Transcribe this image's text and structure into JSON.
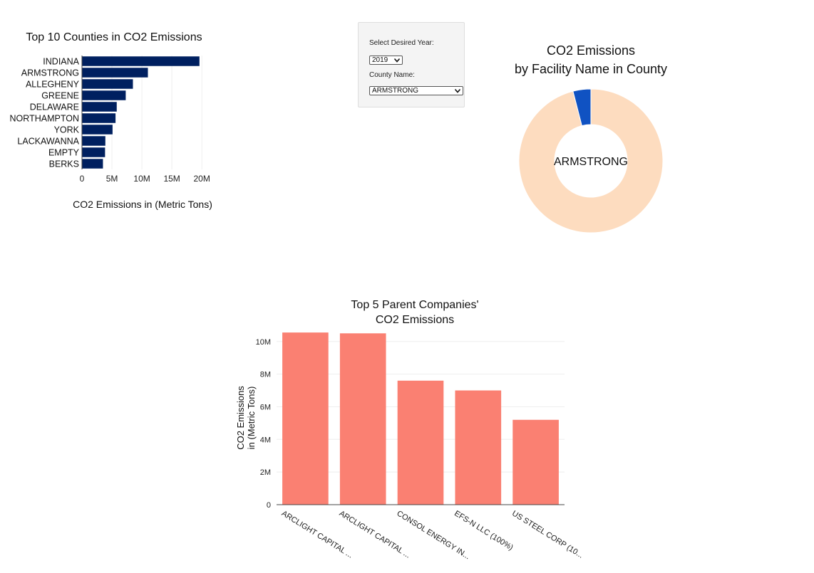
{
  "controls": {
    "year_label": "Select Desired Year:",
    "year_value": "2019",
    "county_label": "County Name:",
    "county_value": "ARMSTRONG"
  },
  "chart_data": [
    {
      "type": "bar",
      "orientation": "horizontal",
      "title": "Top 10 Counties in CO2 Emissions",
      "xlabel": "CO2 Emissions in (Metric Tons)",
      "ylabel": "",
      "categories": [
        "INDIANA",
        "ARMSTRONG",
        "ALLEGHENY",
        "GREENE",
        "DELAWARE",
        "NORTHAMPTON",
        "YORK",
        "LACKAWANNA",
        "EMPTY",
        "BERKS"
      ],
      "values": [
        19600000,
        11000000,
        8500000,
        7300000,
        5800000,
        5600000,
        5100000,
        3900000,
        3850000,
        3500000
      ],
      "xlim": [
        0,
        22000000
      ],
      "xticks": [
        0,
        5000000,
        10000000,
        15000000,
        20000000
      ],
      "xtick_labels": [
        "0",
        "5M",
        "10M",
        "15M",
        "20M"
      ],
      "color": "#002060",
      "grid": true
    },
    {
      "type": "pie",
      "hole": true,
      "title": "CO2 Emissions\nby Facility Name in County",
      "center_label": "ARMSTRONG",
      "values": [
        96,
        4
      ],
      "colors": [
        "#fddcbf",
        "#1052c2"
      ]
    },
    {
      "type": "bar",
      "title": "Top 5 Parent Companies'\nCO2 Emissions",
      "ylabel": "CO2 Emissions\nin (Metric Tons)",
      "xlabel": "",
      "categories": [
        "ARCLIGHT CAPITAL ...",
        "ARCLIGHT CAPITAL ...",
        "CONSOL ENERGY IN...",
        "EFS-N LLC (100%)",
        "US STEEL CORP (10..."
      ],
      "values": [
        10550000,
        10500000,
        7600000,
        7000000,
        5200000
      ],
      "ylim": [
        0,
        10600000
      ],
      "yticks": [
        0,
        2000000,
        4000000,
        6000000,
        8000000,
        10000000
      ],
      "ytick_labels": [
        "0",
        "2M",
        "4M",
        "6M",
        "8M",
        "10M"
      ],
      "color": "#fa8072",
      "grid": true
    }
  ]
}
